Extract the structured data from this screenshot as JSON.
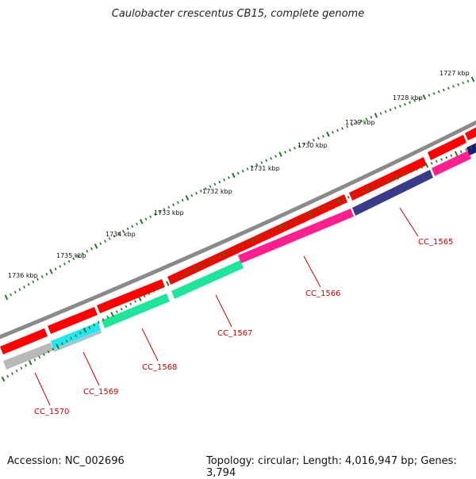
{
  "map": {
    "title": "Caulobacter crescentus CB15, complete genome",
    "accession": "Accession: NC_002696",
    "summary": "Topology: circular; Length: 4,016,947 bp; Genes: 3,794"
  },
  "scale_labels": [
    "1727 kbp",
    "1728 kbp",
    "1729 kbp",
    "1730 kbp",
    "1731 kbp",
    "1732 kbp",
    "1733 kbp",
    "1734 kbp",
    "1735 kbp",
    "1736 kbp"
  ],
  "gene_labels": [
    "CC_1565",
    "CC_1566",
    "CC_1567",
    "CC_1568",
    "CC_1569",
    "CC_1570"
  ],
  "colors": {
    "backbone": "#7f7f7f",
    "feature_red": "#ff0000",
    "tick_green": "#1f7a1f",
    "label_red": "#cc0000",
    "gene_navy": "#3a3a8a",
    "gene_pink": "#ff1f8f",
    "gene_green": "#1fe59a",
    "gene_cyan": "#25e5f0",
    "gene_gray": "#b8b8b8",
    "gene_darkblue": "#1a1a7a"
  }
}
